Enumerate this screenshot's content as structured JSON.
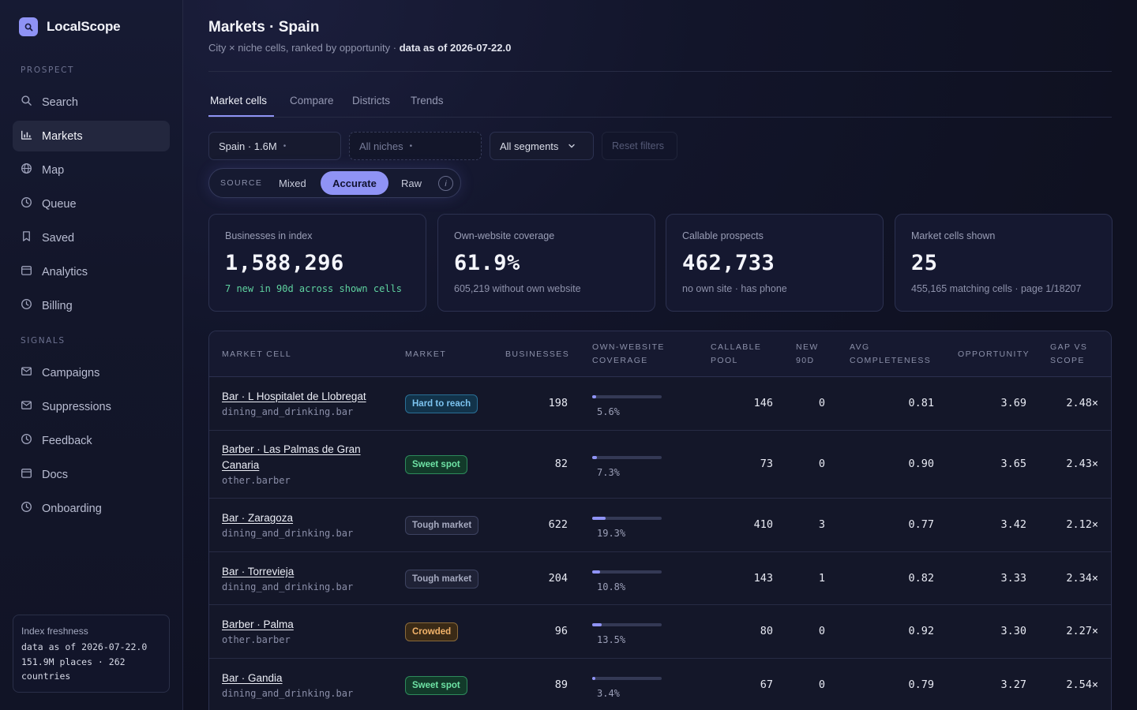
{
  "app": {
    "name": "LocalScope"
  },
  "sidebar": {
    "sections": [
      {
        "label": "PROSPECT",
        "items": [
          {
            "label": "Search",
            "icon": "search-icon"
          },
          {
            "label": "Markets",
            "icon": "bar-chart-icon",
            "active": true
          },
          {
            "label": "Map",
            "icon": "globe-icon"
          },
          {
            "label": "Queue",
            "icon": "clock-icon"
          },
          {
            "label": "Saved",
            "icon": "bookmark-icon"
          },
          {
            "label": "Analytics",
            "icon": "calendar-icon"
          },
          {
            "label": "Billing",
            "icon": "clock-icon"
          }
        ]
      },
      {
        "label": "SIGNALS",
        "items": [
          {
            "label": "Campaigns",
            "icon": "mail-icon"
          },
          {
            "label": "Suppressions",
            "icon": "mail-icon"
          },
          {
            "label": "Feedback",
            "icon": "clock-icon"
          },
          {
            "label": "Docs",
            "icon": "calendar-icon"
          },
          {
            "label": "Onboarding",
            "icon": "clock-icon"
          }
        ]
      }
    ],
    "freshness": {
      "title": "Index freshness",
      "line1": "data as of 2026-07-22.0",
      "line2": "151.9M places · 262",
      "line3": "countries"
    }
  },
  "header": {
    "title": "Markets · Spain",
    "subtitle": "City × niche cells, ranked by opportunity · ",
    "subtitle_bold": "data as of 2026-07-22.0"
  },
  "tabs": [
    "Market cells",
    "Compare",
    "Districts",
    "Trends"
  ],
  "filters": {
    "country": "Spain · 1.6M",
    "niches": "All niches",
    "segments": "All segments",
    "reset": "Reset filters"
  },
  "source": {
    "label": "SOURCE",
    "options": [
      "Mixed",
      "Accurate",
      "Raw"
    ],
    "selected": "Accurate",
    "info": "i"
  },
  "stats": [
    {
      "label": "Businesses in index",
      "value": "1,588,296",
      "note": "7 new in 90d across shown cells"
    },
    {
      "label": "Own-website coverage",
      "value": "61.9%",
      "note": "605,219 without own website"
    },
    {
      "label": "Callable prospects",
      "value": "462,733",
      "note": "no own site · has phone"
    },
    {
      "label": "Market cells shown",
      "value": "25",
      "note": "455,165 matching cells · page 1/18207"
    }
  ],
  "table": {
    "headers": {
      "market_cell": "MARKET CELL",
      "market": "MARKET",
      "businesses": "BUSINESSES",
      "coverage_1": "OWN-WEBSITE",
      "coverage_2": "COVERAGE",
      "callable_1": "CALLABLE",
      "callable_2": "POOL",
      "new_1": "NEW",
      "new_2": "90D",
      "avg_1": "AVG",
      "avg_2": "COMPLETENESS",
      "opportunity": "OPPORTUNITY",
      "gap_1": "GAP VS",
      "gap_2": "SCOPE"
    },
    "rows": [
      {
        "name": "Bar · L Hospitalet de Llobregat",
        "name2": "",
        "cat": "dining_and_drinking.bar",
        "market": "Hard to reach",
        "businesses": "198",
        "coverage": 0.056,
        "coverage_label": "5.6%",
        "callable": "146",
        "new90": "0",
        "avg": "0.81",
        "opportunity": "3.69",
        "gap": "2.48×"
      },
      {
        "name": "Barber · Las Palmas de Gran",
        "name2": "Canaria",
        "cat": "other.barber",
        "market": "Sweet spot",
        "businesses": "82",
        "coverage": 0.073,
        "coverage_label": "7.3%",
        "callable": "73",
        "new90": "0",
        "avg": "0.90",
        "opportunity": "3.65",
        "gap": "2.43×"
      },
      {
        "name": "Bar · Zaragoza",
        "name2": "",
        "cat": "dining_and_drinking.bar",
        "market": "Tough market",
        "businesses": "622",
        "coverage": 0.193,
        "coverage_label": "19.3%",
        "callable": "410",
        "new90": "3",
        "avg": "0.77",
        "opportunity": "3.42",
        "gap": "2.12×"
      },
      {
        "name": "Bar · Torrevieja",
        "name2": "",
        "cat": "dining_and_drinking.bar",
        "market": "Tough market",
        "businesses": "204",
        "coverage": 0.108,
        "coverage_label": "10.8%",
        "callable": "143",
        "new90": "1",
        "avg": "0.82",
        "opportunity": "3.33",
        "gap": "2.34×"
      },
      {
        "name": "Barber · Palma",
        "name2": "",
        "cat": "other.barber",
        "market": "Crowded",
        "businesses": "96",
        "coverage": 0.135,
        "coverage_label": "13.5%",
        "callable": "80",
        "new90": "0",
        "avg": "0.92",
        "opportunity": "3.30",
        "gap": "2.27×"
      },
      {
        "name": "Bar · Gandia",
        "name2": "",
        "cat": "dining_and_drinking.bar",
        "market": "Sweet spot",
        "businesses": "89",
        "coverage": 0.034,
        "coverage_label": "3.4%",
        "callable": "67",
        "new90": "0",
        "avg": "0.79",
        "opportunity": "3.27",
        "gap": "2.54×"
      }
    ]
  },
  "colors": {
    "accent": "#8f93f5",
    "badge_hard": "#7cc4f0",
    "badge_sweet": "#6ee3a5",
    "badge_tough": "#a6aac0",
    "badge_crowded": "#f2b36a"
  }
}
